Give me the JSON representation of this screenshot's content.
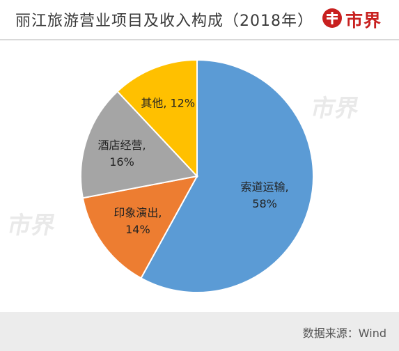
{
  "header": {
    "title": "丽江旅游营业项目及收入构成（2018年）",
    "logo_text": "市界",
    "logo_icon": "brand-circle-icon",
    "brand_color": "#c8201f"
  },
  "watermark_text": "市界",
  "chart_data": {
    "type": "pie",
    "title": "丽江旅游营业项目及收入构成（2018年）",
    "slices": [
      {
        "label": "索道运输",
        "value": 58,
        "value_label": "58%",
        "color": "#5b9bd5"
      },
      {
        "label": "印象演出",
        "value": 14,
        "value_label": "14%",
        "color": "#ed7d31"
      },
      {
        "label": "酒店经营",
        "value": 16,
        "value_label": "16%",
        "color": "#a5a5a5"
      },
      {
        "label": "其他",
        "value": 12,
        "value_label": "12%",
        "color": "#ffc000"
      }
    ],
    "start_angle_deg": 0,
    "direction": "clockwise",
    "legend": "none",
    "data_labels": "inside"
  },
  "footer": {
    "source": "数据来源：Wind"
  }
}
